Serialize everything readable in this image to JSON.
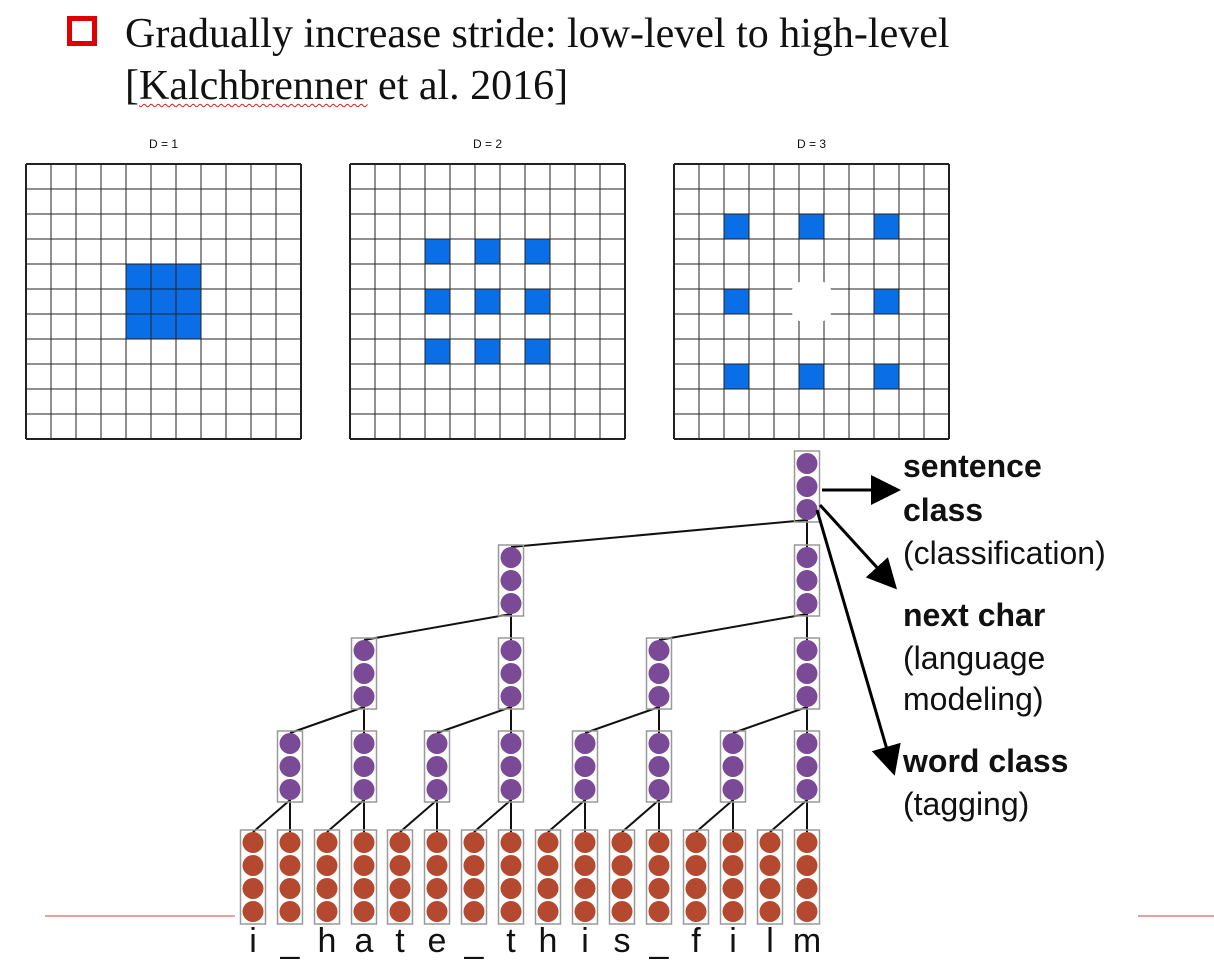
{
  "heading": {
    "line1": "Gradually increase stride: low-level to high-level",
    "ref_open": "[",
    "ref_name": "Kalchbrenner",
    "ref_rest": " et al. 2016]"
  },
  "grids": [
    {
      "label": "D = 1",
      "dilation": 1
    },
    {
      "label": "D = 2",
      "dilation": 2
    },
    {
      "label": "D = 3",
      "dilation": 3
    }
  ],
  "characters": [
    "i",
    "_",
    "h",
    "a",
    "t",
    "e",
    "_",
    "t",
    "h",
    "i",
    "s",
    "_",
    "f",
    "i",
    "l",
    "m"
  ],
  "outputs": {
    "sentence": {
      "bold1": "sentence",
      "bold2": "class",
      "normal": "(classification)"
    },
    "nextchar": {
      "bold": "next char",
      "normal1": "(language",
      "normal2": "modeling)"
    },
    "word": {
      "bold": "word class",
      "normal": "(tagging)"
    }
  },
  "colors": {
    "bullet": "#e00000",
    "grid_fill": "#0a6ee6",
    "hidden_node": "#7a4a96",
    "input_node": "#b5492f",
    "underline": "#d02020"
  }
}
